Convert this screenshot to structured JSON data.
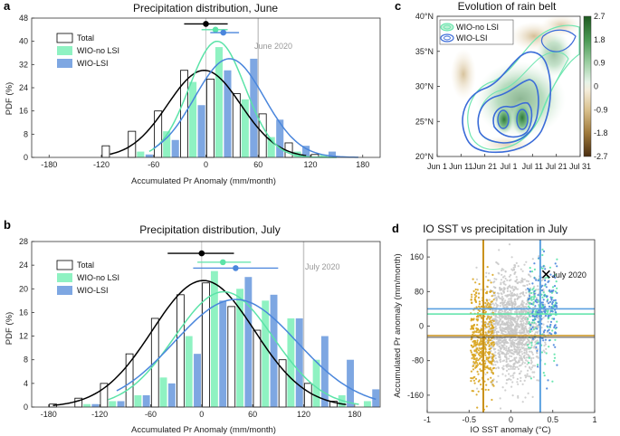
{
  "chart_data": [
    {
      "panel": "a",
      "type": "bar",
      "title": "Precipitation distribution, June",
      "xlabel": "Accumulated Pr Anomaly (mm/month)",
      "ylabel": "PDF (%)",
      "xlim": [
        -200,
        200
      ],
      "ylim": [
        0,
        48
      ],
      "xticks": [
        -180,
        -120,
        -60,
        0,
        60,
        120,
        180
      ],
      "yticks": [
        0,
        8,
        16,
        24,
        32,
        40,
        48
      ],
      "bin_centers": [
        -105,
        -75,
        -45,
        -15,
        15,
        45,
        75,
        105,
        135
      ],
      "series": [
        {
          "name": "Total",
          "style": "hollow-bar",
          "values": [
            4,
            9,
            16,
            30,
            27,
            22,
            15,
            5,
            1
          ]
        },
        {
          "name": "WIO-no LSI",
          "color": "#8ff2c2",
          "values": [
            0,
            2,
            9,
            26,
            38,
            20,
            7,
            2,
            1
          ]
        },
        {
          "name": "WIO-LSI",
          "color": "#7ea7e2",
          "values": [
            0,
            1,
            6,
            18,
            30,
            34,
            13,
            4,
            2
          ]
        }
      ],
      "fits": [
        {
          "name": "Total",
          "color": "#000000",
          "mean": -2,
          "sd": 42,
          "peak": 30,
          "x_range": [
            -110,
            115
          ]
        },
        {
          "name": "WIO-no LSI",
          "color": "#5be3a8",
          "mean": 13,
          "sd": 32,
          "peak": 40,
          "x_range": [
            -65,
            150
          ]
        },
        {
          "name": "WIO-LSI",
          "color": "#4a86dc",
          "mean": 27,
          "sd": 40,
          "peak": 34,
          "x_range": [
            -60,
            175
          ]
        }
      ],
      "dots": [
        {
          "series": "Total",
          "color": "#000000",
          "mean": 0,
          "range": [
            -25,
            25
          ],
          "y": 46
        },
        {
          "series": "WIO-no LSI",
          "color": "#5be3a8",
          "mean": 11,
          "range": [
            -5,
            25
          ],
          "y": 44
        },
        {
          "series": "WIO-LSI",
          "color": "#4a86dc",
          "mean": 20,
          "range": [
            5,
            38
          ],
          "y": 43
        }
      ],
      "vlines": [
        0,
        60
      ],
      "annotation": {
        "text": "June 2020",
        "x": 60
      },
      "legend": [
        "Total",
        "WIO-no LSI",
        "WIO-LSI"
      ]
    },
    {
      "panel": "b",
      "type": "bar",
      "title": "Precipitation distribution, July",
      "xlabel": "Accumulated Pr Anomaly (mm/month)",
      "ylabel": "PDF (%)",
      "xlim": [
        -200,
        210
      ],
      "ylim": [
        0,
        28
      ],
      "xticks": [
        -180,
        -120,
        -60,
        0,
        60,
        120,
        180
      ],
      "yticks": [
        0,
        4,
        8,
        12,
        16,
        20,
        24,
        28
      ],
      "bin_centers": [
        -165,
        -135,
        -105,
        -75,
        -45,
        -15,
        15,
        45,
        75,
        105,
        135,
        165,
        195
      ],
      "series": [
        {
          "name": "Total",
          "style": "hollow-bar",
          "values": [
            0.5,
            1.5,
            4,
            9,
            15,
            19,
            21,
            17,
            13,
            8,
            4,
            1,
            0
          ]
        },
        {
          "name": "WIO-no LSI",
          "color": "#8ff2c2",
          "values": [
            0,
            0.5,
            1,
            2,
            5,
            12,
            23,
            20,
            18,
            15,
            8,
            2,
            1
          ]
        },
        {
          "name": "WIO-LSI",
          "color": "#7ea7e2",
          "values": [
            0,
            0.5,
            1,
            2,
            4,
            9,
            18,
            22,
            19,
            15,
            12,
            8,
            3
          ]
        }
      ],
      "fits": [
        {
          "name": "Total",
          "color": "#000000",
          "mean": 2,
          "sd": 60,
          "peak": 21.4,
          "x_range": [
            -175,
            170
          ]
        },
        {
          "name": "WIO-no LSI",
          "color": "#5be3a8",
          "mean": 26,
          "sd": 58,
          "peak": 19.5,
          "x_range": [
            -110,
            185
          ]
        },
        {
          "name": "WIO-LSI",
          "color": "#4a86dc",
          "mean": 40,
          "sd": 72,
          "peak": 18.2,
          "x_range": [
            -100,
            205
          ]
        }
      ],
      "dots": [
        {
          "series": "Total",
          "color": "#000000",
          "mean": 0,
          "range": [
            -40,
            38
          ],
          "y": 26
        },
        {
          "series": "WIO-no LSI",
          "color": "#5be3a8",
          "mean": 25,
          "range": [
            -5,
            58
          ],
          "y": 24.5
        },
        {
          "series": "WIO-LSI",
          "color": "#4a86dc",
          "mean": 40,
          "range": [
            -10,
            90
          ],
          "y": 23.5
        }
      ],
      "vlines": [
        0,
        120
      ],
      "annotation": {
        "text": "July 2020",
        "x": 120
      },
      "legend": [
        "Total",
        "WIO-no LSI",
        "WIO-LSI"
      ]
    },
    {
      "panel": "c",
      "type": "heatmap",
      "title": "Evolution of rain belt",
      "xticks": [
        "Jun 1",
        "Jun 11",
        "Jun 21",
        "Jul 1",
        "Jul 11",
        "Jul 21",
        "Jul 31"
      ],
      "yticks": [
        "20°N",
        "25°N",
        "30°N",
        "35°N",
        "40°N"
      ],
      "ylim": [
        20,
        40
      ],
      "colorbar_ticks": [
        "2.7",
        "1.8",
        "0.9",
        "0",
        "-0.9",
        "-1.8",
        "-2.7"
      ],
      "colorbar_range": [
        -2.7,
        2.7
      ],
      "legend": [
        "WIO-no LSI",
        "WIO-LSI"
      ]
    },
    {
      "panel": "d",
      "type": "scatter",
      "title": "IO SST vs precipitation in July",
      "xlabel": "IO SST anomaly (°C)",
      "ylabel": "Accumulated Pr anomaly (mm/month)",
      "xlim": [
        -1,
        1
      ],
      "ylim": [
        -200,
        200
      ],
      "xticks": [
        -1,
        -0.5,
        0,
        0.5,
        1
      ],
      "yticks": [
        -160,
        -80,
        0,
        80,
        160
      ],
      "clusters": [
        {
          "name": "Total",
          "color": "#c8c8c8",
          "x_range": [
            -0.5,
            0.55
          ],
          "y_mean": 0,
          "y_sd": 60
        },
        {
          "name": "Cold",
          "color": "#d9a520",
          "x_range": [
            -0.48,
            -0.2
          ],
          "y_mean": -22,
          "y_sd": 60
        },
        {
          "name": "WIO-no LSI",
          "color": "#5be3a8",
          "x_range": [
            0.2,
            0.55
          ],
          "y_mean": 28,
          "y_sd": 55
        },
        {
          "name": "WIO-LSI",
          "color": "#4a86dc",
          "x_range": [
            0.2,
            0.55
          ],
          "y_mean": 40,
          "y_sd": 55
        }
      ],
      "vlines": [
        {
          "x": -0.33,
          "color": "#c9911a"
        },
        {
          "x": 0.35,
          "color": "#5aa0e0"
        }
      ],
      "hlines": [
        {
          "y": -22,
          "color": "#c9911a"
        },
        {
          "y": 28,
          "color": "#5be3a8"
        },
        {
          "y": 40,
          "color": "#5aa0e0"
        }
      ],
      "marker": {
        "label": "July 2020",
        "x": 0.42,
        "y": 120
      }
    }
  ]
}
